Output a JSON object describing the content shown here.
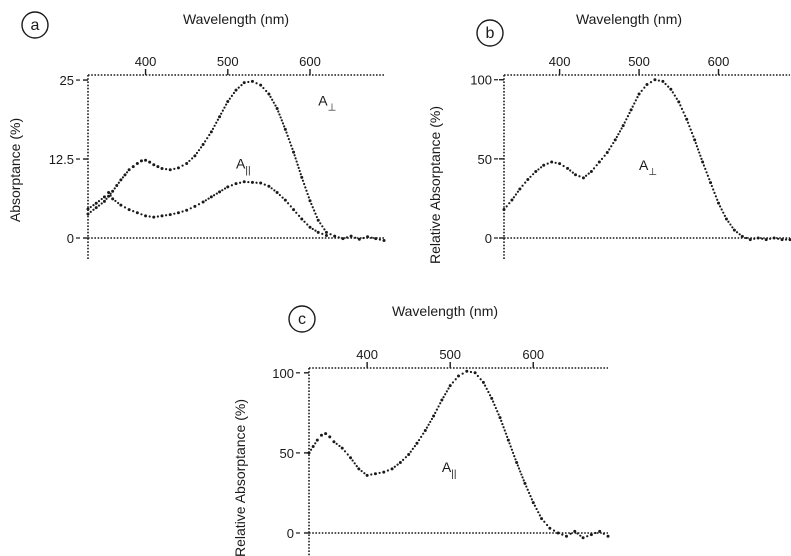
{
  "chart_data": [
    {
      "type": "scatter",
      "panel_label": "a",
      "title": "",
      "xlabel": "Wavelength (nm)",
      "ylabel": "Absorptance (%)",
      "xlim": [
        330,
        690
      ],
      "ylim": [
        -2.5,
        25.8
      ],
      "x_ticks": [
        400,
        500,
        600
      ],
      "y_ticks": [
        0,
        12.5,
        25
      ],
      "y_tick_labels": [
        "0",
        "12.5",
        "25"
      ],
      "grid": false,
      "annotations": [
        {
          "text": "A",
          "sub": "⊥",
          "x": 610,
          "y": 21
        },
        {
          "text": "A",
          "sub": "||",
          "x": 510,
          "y": 11
        }
      ],
      "series": [
        {
          "x": [
            330,
            340,
            350,
            355,
            360,
            365,
            370,
            375,
            380,
            385,
            390,
            395,
            400,
            405,
            410,
            415,
            420,
            430,
            440,
            450,
            460,
            470,
            480,
            490,
            500,
            510,
            520,
            530,
            540,
            550,
            560,
            570,
            580,
            590,
            600,
            610,
            620,
            630,
            640,
            650,
            660,
            670,
            680,
            690
          ],
          "y": [
            3.8,
            4.8,
            5.8,
            6.6,
            7.4,
            8.3,
            9.2,
            10.0,
            10.8,
            11.3,
            11.8,
            12.2,
            12.3,
            12.0,
            11.6,
            11.3,
            11.0,
            10.8,
            11.1,
            11.8,
            13.0,
            14.8,
            16.8,
            19.2,
            21.6,
            23.4,
            24.6,
            24.8,
            24.2,
            22.8,
            20.5,
            17.2,
            13.6,
            9.6,
            5.9,
            2.8,
            0.9,
            0.3,
            -0.1,
            0.3,
            -0.2,
            0.2,
            -0.1,
            -0.4
          ]
        },
        {
          "x": [
            330,
            340,
            350,
            355,
            360,
            370,
            380,
            390,
            400,
            410,
            420,
            430,
            440,
            450,
            460,
            470,
            480,
            490,
            500,
            510,
            520,
            530,
            540,
            550,
            560,
            570,
            580,
            590,
            600,
            610,
            620
          ],
          "y": [
            4.6,
            5.5,
            6.5,
            7.2,
            6.2,
            5.2,
            4.5,
            4.0,
            3.5,
            3.3,
            3.5,
            3.7,
            4.0,
            4.4,
            5.0,
            5.7,
            6.5,
            7.3,
            8.1,
            8.6,
            8.9,
            8.8,
            8.7,
            8.2,
            7.2,
            6.0,
            4.5,
            3.0,
            1.7,
            0.9,
            0.4
          ]
        }
      ]
    },
    {
      "type": "scatter",
      "panel_label": "b",
      "title": "",
      "xlabel": "Wavelength (nm)",
      "ylabel": "Relative Absorptance (%)",
      "xlim": [
        330,
        690
      ],
      "ylim": [
        -10,
        103
      ],
      "x_ticks": [
        400,
        500,
        600
      ],
      "y_ticks": [
        0,
        50,
        100
      ],
      "y_tick_labels": [
        "0",
        "50",
        "100"
      ],
      "grid": false,
      "annotations": [
        {
          "text": "A",
          "sub": "⊥",
          "x": 500,
          "y": 43
        }
      ],
      "series": [
        {
          "x": [
            330,
            340,
            350,
            360,
            370,
            380,
            390,
            400,
            410,
            420,
            430,
            440,
            450,
            460,
            470,
            480,
            490,
            500,
            510,
            520,
            530,
            540,
            550,
            560,
            570,
            580,
            590,
            600,
            610,
            620,
            630,
            640,
            650,
            660,
            670,
            680,
            690
          ],
          "y": [
            18,
            24,
            31,
            37,
            42,
            46,
            48,
            47,
            44,
            40,
            38,
            42,
            48,
            54,
            62,
            71,
            81,
            91,
            97,
            100,
            99,
            94,
            86,
            75,
            62,
            48,
            35,
            22,
            12,
            5,
            1,
            -1,
            0,
            -1,
            0,
            -1,
            -1
          ]
        }
      ]
    },
    {
      "type": "scatter",
      "panel_label": "c",
      "title": "",
      "xlabel": "Wavelength (nm)",
      "ylabel": "Relative Absorptance (%)",
      "xlim": [
        330,
        690
      ],
      "ylim": [
        -10,
        103
      ],
      "x_ticks": [
        400,
        500,
        600
      ],
      "y_ticks": [
        0,
        50,
        100
      ],
      "y_tick_labels": [
        "0",
        "50",
        "100"
      ],
      "grid": false,
      "annotations": [
        {
          "text": "A",
          "sub": "||",
          "x": 490,
          "y": 38
        }
      ],
      "series": [
        {
          "x": [
            330,
            335,
            340,
            345,
            350,
            355,
            360,
            370,
            380,
            390,
            400,
            410,
            420,
            430,
            440,
            450,
            460,
            470,
            480,
            490,
            500,
            510,
            520,
            530,
            540,
            550,
            560,
            570,
            580,
            590,
            600,
            610,
            620,
            630,
            640,
            650,
            660,
            670,
            680,
            690
          ],
          "y": [
            50,
            54,
            58,
            61,
            62,
            60,
            57,
            53,
            47,
            40,
            36,
            37,
            38,
            40,
            44,
            49,
            56,
            64,
            73,
            83,
            92,
            98,
            101,
            100,
            94,
            84,
            72,
            58,
            44,
            31,
            19,
            9,
            3,
            0,
            -2,
            1,
            -3,
            -1,
            1,
            -2
          ]
        }
      ]
    }
  ]
}
